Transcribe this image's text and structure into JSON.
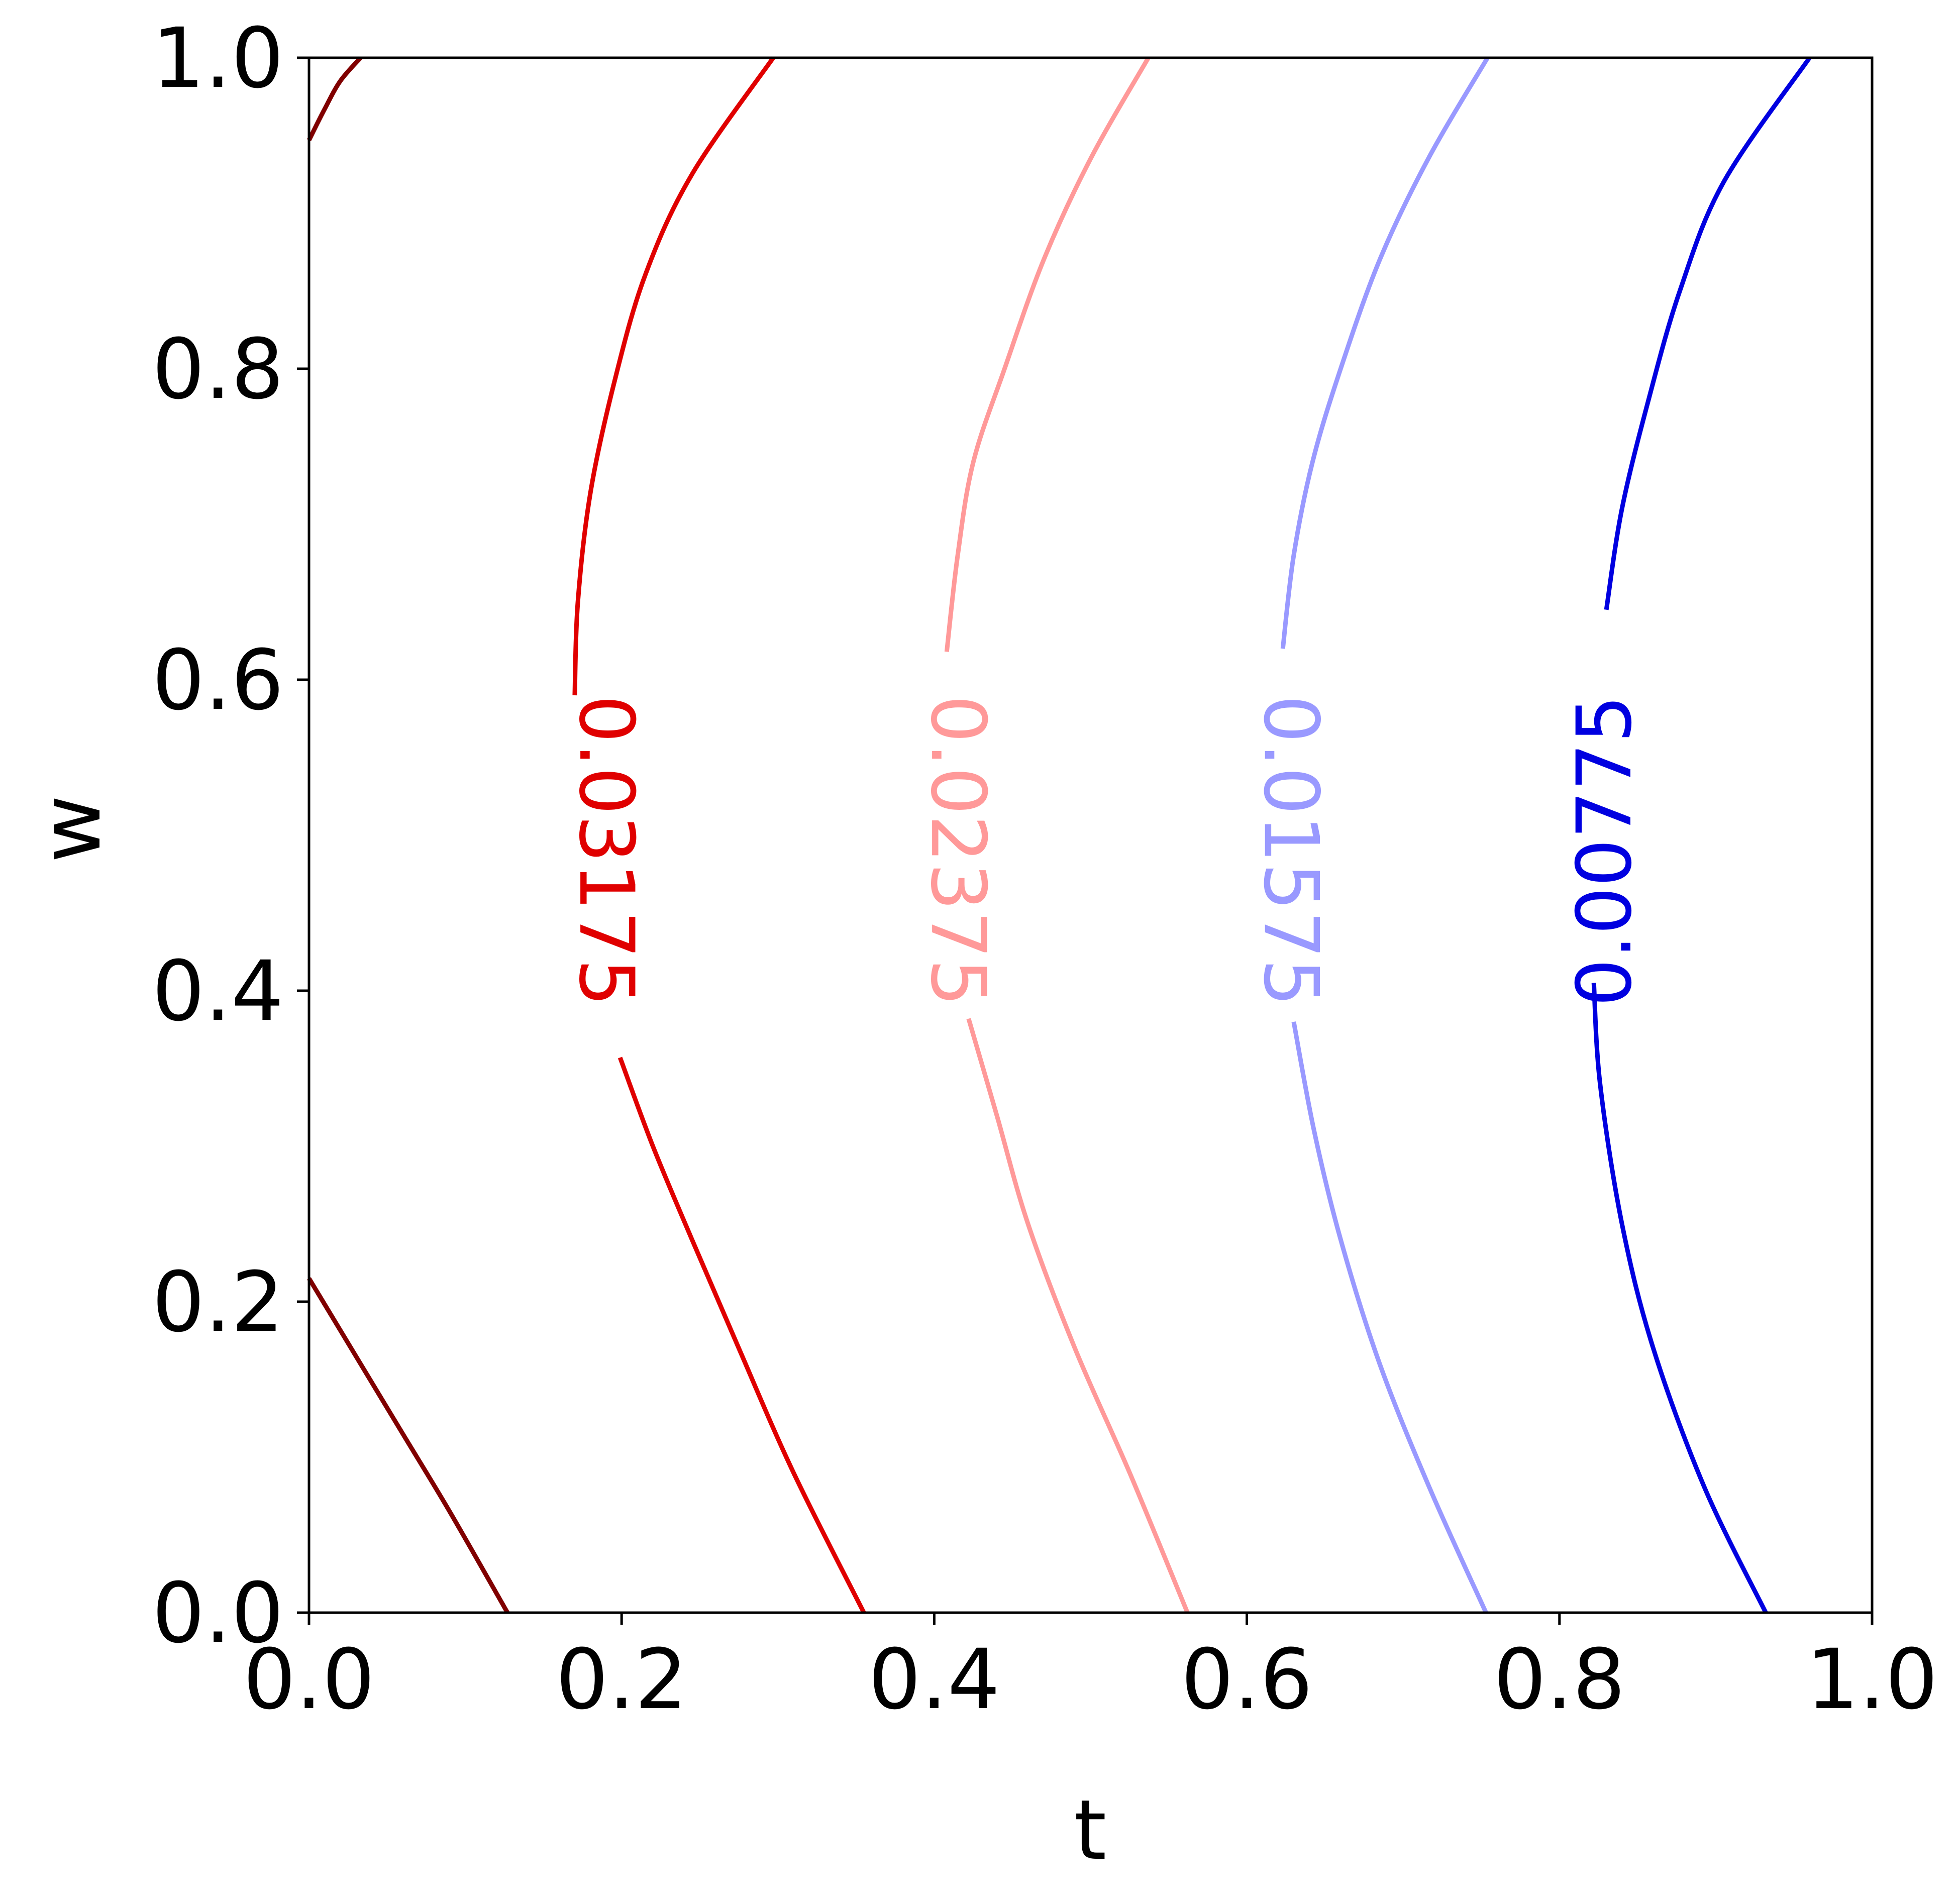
{
  "chart_data": {
    "type": "contour",
    "xlabel": "t",
    "ylabel": "w",
    "xlim": [
      0.0,
      1.0
    ],
    "ylim": [
      0.0,
      1.0
    ],
    "x_ticks": [
      "0.0",
      "0.2",
      "0.4",
      "0.6",
      "0.8",
      "1.0"
    ],
    "y_ticks": [
      "0.0",
      "0.2",
      "0.4",
      "0.6",
      "0.8",
      "1.0"
    ],
    "grid": false,
    "contours": [
      {
        "level": "",
        "color": "#800000",
        "segments": [
          [
            [
              0.0,
              0.947
            ],
            [
              0.01,
              0.967
            ],
            [
              0.02,
              0.985
            ],
            [
              0.033,
              1.0
            ]
          ],
          [
            [
              0.0,
              0.215
            ],
            [
              0.03,
              0.165
            ],
            [
              0.06,
              0.115
            ],
            [
              0.09,
              0.065
            ],
            [
              0.127,
              0.0
            ]
          ]
        ]
      },
      {
        "level": "0.03175",
        "color": "#e00000",
        "label": "0.03175",
        "label_at": [
          0.19,
          0.49
        ],
        "segments": [
          [
            [
              0.17,
              0.59
            ],
            [
              0.172,
              0.65
            ],
            [
              0.18,
              0.72
            ],
            [
              0.195,
              0.79
            ],
            [
              0.215,
              0.86
            ],
            [
              0.245,
              0.925
            ],
            [
              0.297,
              1.0
            ]
          ],
          [
            [
              0.199,
              0.357
            ],
            [
              0.22,
              0.3
            ],
            [
              0.245,
              0.24
            ],
            [
              0.275,
              0.17
            ],
            [
              0.31,
              0.09
            ],
            [
              0.355,
              0.0
            ]
          ]
        ]
      },
      {
        "level": "0.02375",
        "color": "#ff9999",
        "label": "0.02375",
        "label_at": [
          0.415,
          0.49
        ],
        "segments": [
          [
            [
              0.408,
              0.618
            ],
            [
              0.415,
              0.68
            ],
            [
              0.425,
              0.74
            ],
            [
              0.445,
              0.8
            ],
            [
              0.47,
              0.87
            ],
            [
              0.5,
              0.935
            ],
            [
              0.537,
              1.0
            ]
          ],
          [
            [
              0.422,
              0.382
            ],
            [
              0.44,
              0.32
            ],
            [
              0.46,
              0.25
            ],
            [
              0.49,
              0.17
            ],
            [
              0.525,
              0.09
            ],
            [
              0.562,
              0.0
            ]
          ]
        ]
      },
      {
        "level": "0.01575",
        "color": "#9999ff",
        "label": "0.01575",
        "label_at": [
          0.628,
          0.49
        ],
        "segments": [
          [
            [
              0.623,
              0.62
            ],
            [
              0.63,
              0.68
            ],
            [
              0.642,
              0.74
            ],
            [
              0.66,
              0.8
            ],
            [
              0.685,
              0.87
            ],
            [
              0.716,
              0.935
            ],
            [
              0.754,
              1.0
            ]
          ],
          [
            [
              0.63,
              0.38
            ],
            [
              0.643,
              0.31
            ],
            [
              0.66,
              0.24
            ],
            [
              0.685,
              0.16
            ],
            [
              0.717,
              0.08
            ],
            [
              0.753,
              0.0
            ]
          ]
        ]
      },
      {
        "level": "0.00775",
        "color": "#0000e0",
        "label": "0.00775",
        "label_at": [
          0.829,
          0.49
        ],
        "segments": [
          [
            [
              0.83,
              0.645
            ],
            [
              0.84,
              0.71
            ],
            [
              0.857,
              0.78
            ],
            [
              0.877,
              0.85
            ],
            [
              0.905,
              0.92
            ],
            [
              0.96,
              1.0
            ]
          ],
          [
            [
              0.822,
              0.405
            ],
            [
              0.826,
              0.34
            ],
            [
              0.84,
              0.25
            ],
            [
              0.86,
              0.17
            ],
            [
              0.893,
              0.08
            ],
            [
              0.932,
              0.0
            ]
          ]
        ]
      }
    ]
  }
}
